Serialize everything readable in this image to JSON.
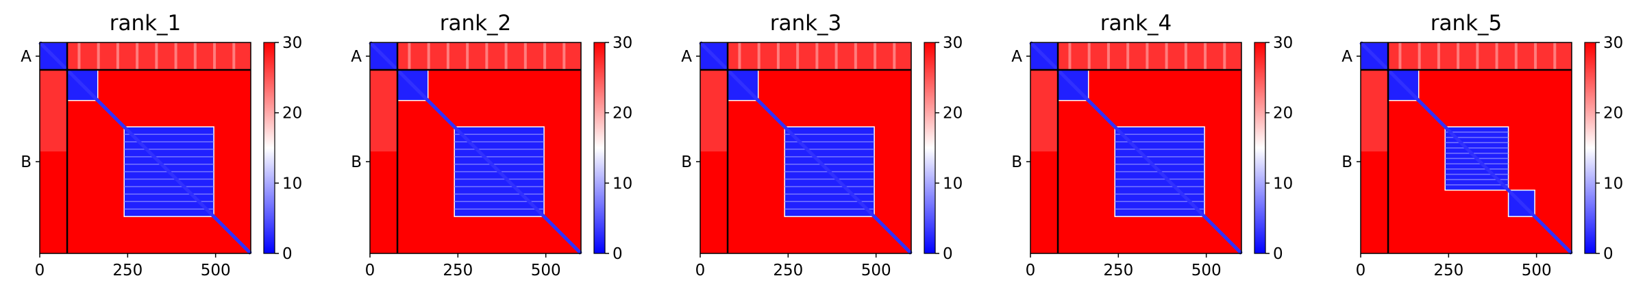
{
  "figure": {
    "colorbar": {
      "min": 0,
      "max": 30,
      "ticks": [
        "0",
        "10",
        "20",
        "30"
      ],
      "colormap": "bwr",
      "colors": {
        "low": "#0000ff",
        "mid": "#ffffff",
        "high": "#ff0000"
      }
    },
    "x_ticks": [
      "0",
      "250",
      "500"
    ],
    "chain_labels": [
      "A",
      "B"
    ],
    "chain_boundary_residue": 78,
    "sequence_length": 600
  },
  "chart_data": [
    {
      "type": "heatmap",
      "title": "rank_1",
      "xlim": [
        0,
        600
      ],
      "ylim": [
        600,
        0
      ],
      "y_categories": [
        "A",
        "B"
      ],
      "colorbar_range": [
        0,
        30
      ],
      "low_error_blocks": [
        [
          0,
          78,
          0,
          78
        ],
        [
          78,
          165,
          78,
          165
        ],
        [
          240,
          495,
          240,
          495
        ]
      ],
      "diagonal_low_error": true
    },
    {
      "type": "heatmap",
      "title": "rank_2",
      "xlim": [
        0,
        600
      ],
      "ylim": [
        600,
        0
      ],
      "y_categories": [
        "A",
        "B"
      ],
      "colorbar_range": [
        0,
        30
      ],
      "low_error_blocks": [
        [
          0,
          78,
          0,
          78
        ],
        [
          78,
          165,
          78,
          165
        ],
        [
          240,
          495,
          240,
          495
        ]
      ],
      "diagonal_low_error": true
    },
    {
      "type": "heatmap",
      "title": "rank_3",
      "xlim": [
        0,
        600
      ],
      "ylim": [
        600,
        0
      ],
      "y_categories": [
        "A",
        "B"
      ],
      "colorbar_range": [
        0,
        30
      ],
      "low_error_blocks": [
        [
          0,
          78,
          0,
          78
        ],
        [
          78,
          165,
          78,
          165
        ],
        [
          240,
          495,
          240,
          495
        ]
      ],
      "diagonal_low_error": true
    },
    {
      "type": "heatmap",
      "title": "rank_4",
      "xlim": [
        0,
        600
      ],
      "ylim": [
        600,
        0
      ],
      "y_categories": [
        "A",
        "B"
      ],
      "colorbar_range": [
        0,
        30
      ],
      "low_error_blocks": [
        [
          0,
          78,
          0,
          78
        ],
        [
          78,
          165,
          78,
          165
        ],
        [
          240,
          495,
          240,
          495
        ]
      ],
      "diagonal_low_error": true
    },
    {
      "type": "heatmap",
      "title": "rank_5",
      "xlim": [
        0,
        600
      ],
      "ylim": [
        600,
        0
      ],
      "y_categories": [
        "A",
        "B"
      ],
      "colorbar_range": [
        0,
        30
      ],
      "low_error_blocks": [
        [
          0,
          78,
          0,
          78
        ],
        [
          78,
          165,
          78,
          165
        ],
        [
          240,
          420,
          240,
          420
        ],
        [
          420,
          495,
          420,
          495
        ]
      ],
      "diagonal_low_error": true
    }
  ]
}
